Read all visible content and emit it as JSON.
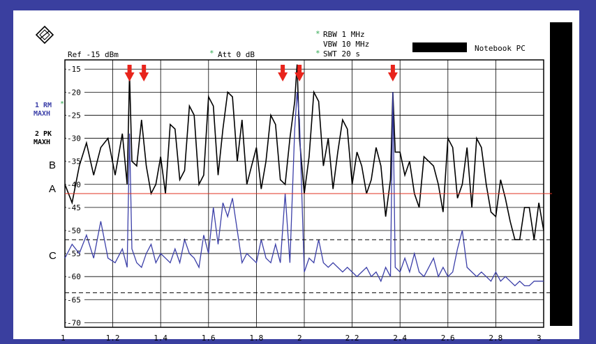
{
  "header": {
    "ref_label": "Ref -15 dBm",
    "att_label": "Att   0 dB",
    "rbw_label": "RBW 1 MHz",
    "vbw_label": "VBW 10 MHz",
    "swt_label": "SWT 20 s",
    "device_label": "Notebook PC"
  },
  "trace_labels": {
    "trace1_line1": "1 RM",
    "trace1_line2": "MAXH",
    "trace2_line1": "2 PK",
    "trace2_line2": "MAXH"
  },
  "colors": {
    "page_border": "#3a3f9f",
    "trace_peak": "#000000",
    "trace_rms": "#3b3fa8",
    "limit_a": "#e03020",
    "markers": "#e8241c",
    "marker_star": "#2fa84f"
  },
  "chart_data": {
    "type": "line",
    "x_ticks": [
      "1",
      "1.2",
      "1.4",
      "1.6",
      "1.8",
      "2",
      "2.2",
      "2.4",
      "2.6",
      "2.8",
      "3"
    ],
    "y_ticks": [
      "-15",
      "-20",
      "-25",
      "-30",
      "-35",
      "-40",
      "-45",
      "-50",
      "-55",
      "-60",
      "-65",
      "-70"
    ],
    "xlim": [
      1,
      3
    ],
    "ylim": [
      -71,
      -13
    ],
    "grid": true,
    "reference_lines": [
      {
        "label": "A",
        "y": -42,
        "style": "solid",
        "color": "#e03020"
      },
      {
        "label": "B",
        "y": -37,
        "style": "none"
      },
      {
        "label": "C",
        "y": -56,
        "style": "none"
      },
      {
        "label": "",
        "y": -52,
        "style": "dashed"
      },
      {
        "label": "",
        "y": -63.5,
        "style": "dashed"
      }
    ],
    "markers_x": [
      1.27,
      1.33,
      1.91,
      1.98,
      2.37
    ],
    "series": [
      {
        "name": "2 PK MAXH",
        "color": "#000000",
        "x": [
          1.0,
          1.03,
          1.06,
          1.09,
          1.12,
          1.15,
          1.18,
          1.21,
          1.24,
          1.26,
          1.27,
          1.28,
          1.3,
          1.32,
          1.34,
          1.36,
          1.38,
          1.4,
          1.42,
          1.44,
          1.46,
          1.48,
          1.5,
          1.52,
          1.54,
          1.56,
          1.58,
          1.6,
          1.62,
          1.64,
          1.66,
          1.68,
          1.7,
          1.72,
          1.74,
          1.76,
          1.78,
          1.8,
          1.82,
          1.84,
          1.86,
          1.88,
          1.9,
          1.92,
          1.94,
          1.96,
          1.97,
          1.98,
          2.0,
          2.02,
          2.04,
          2.06,
          2.08,
          2.1,
          2.12,
          2.14,
          2.16,
          2.18,
          2.2,
          2.22,
          2.24,
          2.26,
          2.28,
          2.3,
          2.32,
          2.34,
          2.36,
          2.37,
          2.38,
          2.4,
          2.42,
          2.44,
          2.46,
          2.48,
          2.5,
          2.52,
          2.54,
          2.56,
          2.58,
          2.6,
          2.62,
          2.64,
          2.66,
          2.68,
          2.7,
          2.72,
          2.74,
          2.76,
          2.78,
          2.8,
          2.82,
          2.84,
          2.86,
          2.88,
          2.9,
          2.92,
          2.94,
          2.96,
          2.98,
          3.0
        ],
        "y": [
          -40,
          -44,
          -36,
          -31,
          -38,
          -32,
          -30,
          -38,
          -29,
          -40,
          -16,
          -35,
          -36,
          -26,
          -36,
          -42,
          -40,
          -34,
          -42,
          -27,
          -28,
          -39,
          -37,
          -23,
          -25,
          -40,
          -38,
          -21,
          -23,
          -38,
          -28,
          -20,
          -21,
          -35,
          -26,
          -40,
          -36,
          -32,
          -41,
          -35,
          -25,
          -27,
          -39,
          -40,
          -30,
          -22,
          -14,
          -30,
          -42,
          -34,
          -20,
          -22,
          -36,
          -30,
          -41,
          -33,
          -26,
          -28,
          -40,
          -33,
          -36,
          -42,
          -39,
          -32,
          -36,
          -47,
          -39,
          -20,
          -33,
          -33,
          -38,
          -35,
          -42,
          -45,
          -34,
          -35,
          -36,
          -40,
          -46,
          -30,
          -32,
          -43,
          -40,
          -32,
          -45,
          -30,
          -32,
          -40,
          -46,
          -47,
          -39,
          -43,
          -48,
          -52,
          -52,
          -45,
          -45,
          -52,
          -44,
          -50
        ]
      },
      {
        "name": "1 RM MAXH",
        "color": "#3b3fa8",
        "x": [
          1.0,
          1.03,
          1.06,
          1.09,
          1.12,
          1.15,
          1.18,
          1.21,
          1.24,
          1.26,
          1.27,
          1.28,
          1.3,
          1.32,
          1.34,
          1.36,
          1.38,
          1.4,
          1.42,
          1.44,
          1.46,
          1.48,
          1.5,
          1.52,
          1.54,
          1.56,
          1.58,
          1.6,
          1.62,
          1.64,
          1.66,
          1.68,
          1.7,
          1.72,
          1.74,
          1.76,
          1.78,
          1.8,
          1.82,
          1.84,
          1.86,
          1.88,
          1.9,
          1.92,
          1.94,
          1.96,
          1.97,
          1.98,
          2.0,
          2.02,
          2.04,
          2.06,
          2.08,
          2.1,
          2.12,
          2.14,
          2.16,
          2.18,
          2.2,
          2.22,
          2.24,
          2.26,
          2.28,
          2.3,
          2.32,
          2.34,
          2.36,
          2.37,
          2.38,
          2.4,
          2.42,
          2.44,
          2.46,
          2.48,
          2.5,
          2.52,
          2.54,
          2.56,
          2.58,
          2.6,
          2.62,
          2.64,
          2.66,
          2.68,
          2.7,
          2.72,
          2.74,
          2.76,
          2.78,
          2.8,
          2.82,
          2.84,
          2.86,
          2.88,
          2.9,
          2.92,
          2.94,
          2.96,
          2.98,
          3.0
        ],
        "y": [
          -56,
          -53,
          -55,
          -51,
          -56,
          -48,
          -56,
          -57,
          -54,
          -58,
          -29,
          -54,
          -57,
          -58,
          -55,
          -53,
          -57,
          -55,
          -56,
          -57,
          -54,
          -57,
          -52,
          -55,
          -56,
          -58,
          -51,
          -55,
          -45,
          -53,
          -44,
          -47,
          -43,
          -50,
          -57,
          -55,
          -56,
          -57,
          -52,
          -56,
          -57,
          -53,
          -57,
          -42,
          -57,
          -28,
          -20,
          -26,
          -59,
          -56,
          -57,
          -52,
          -57,
          -58,
          -57,
          -58,
          -59,
          -58,
          -59,
          -60,
          -59,
          -58,
          -60,
          -59,
          -61,
          -58,
          -60,
          -20,
          -58,
          -59,
          -56,
          -59,
          -55,
          -59,
          -60,
          -58,
          -56,
          -60,
          -58,
          -60,
          -59,
          -54,
          -50,
          -58,
          -59,
          -60,
          -59,
          -60,
          -61,
          -59,
          -61,
          -60,
          -61,
          -62,
          -61,
          -62,
          -62,
          -61,
          -61,
          -61
        ]
      }
    ]
  }
}
